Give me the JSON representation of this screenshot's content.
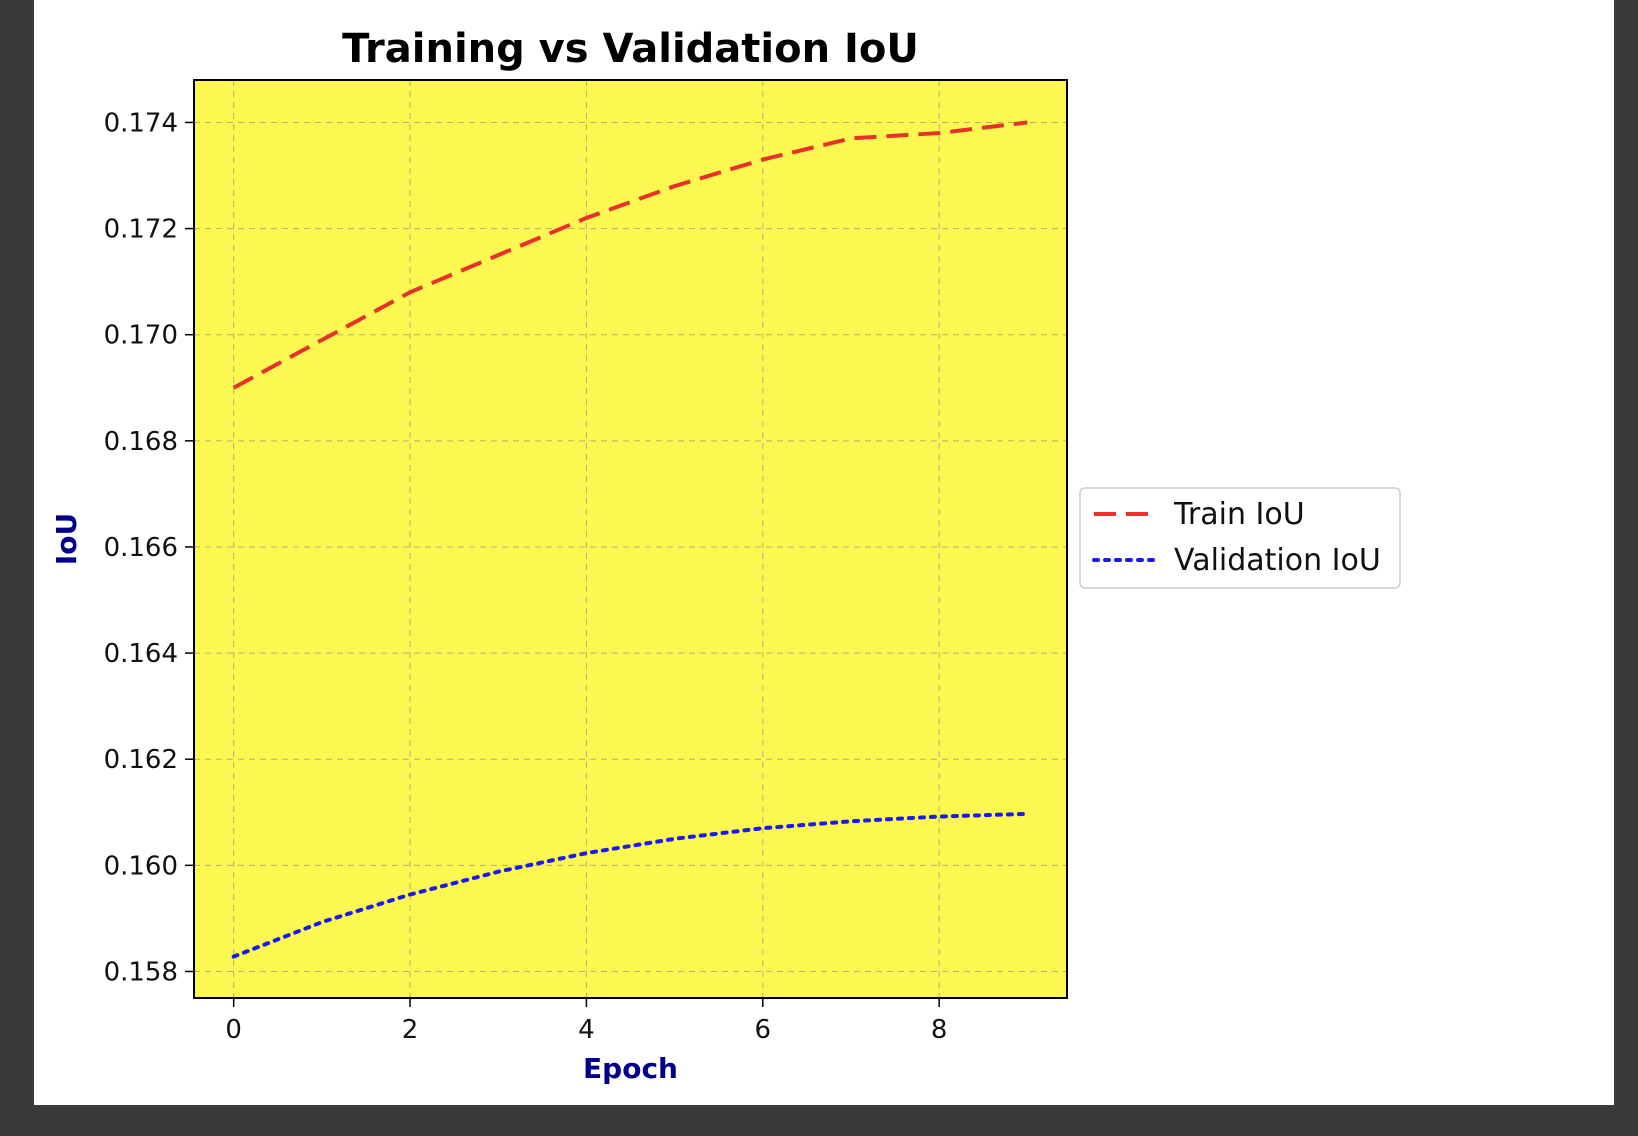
{
  "chart_data": {
    "type": "line",
    "title": "Training vs Validation IoU",
    "xlabel": "Epoch",
    "ylabel": "IoU",
    "x": [
      0,
      1,
      2,
      3,
      4,
      5,
      6,
      7,
      8,
      9
    ],
    "xlim": [
      -0.45,
      9.45
    ],
    "ylim": [
      0.1575,
      0.1748
    ],
    "x_ticks": [
      0,
      2,
      4,
      6,
      8
    ],
    "y_ticks": [
      0.158,
      0.16,
      0.162,
      0.164,
      0.166,
      0.168,
      0.17,
      0.172,
      0.174
    ],
    "y_tick_labels": [
      "0.158",
      "0.160",
      "0.162",
      "0.164",
      "0.166",
      "0.168",
      "0.170",
      "0.172",
      "0.174"
    ],
    "x_tick_labels": [
      "0",
      "2",
      "4",
      "6",
      "8"
    ],
    "grid": true,
    "legend_position": "center-right-outside",
    "plot_background": "#fdf751",
    "series": [
      {
        "name": "Train IoU",
        "color": "#e8312a",
        "style": "dashed",
        "values": [
          0.169,
          0.1699,
          0.1708,
          0.1715,
          0.1722,
          0.1728,
          0.1733,
          0.1737,
          0.1738,
          0.174
        ]
      },
      {
        "name": "Validation IoU",
        "color": "#1a1af0",
        "style": "dotted",
        "values": [
          0.15828,
          0.15893,
          0.15945,
          0.15988,
          0.16023,
          0.1605,
          0.1607,
          0.16083,
          0.16092,
          0.16097
        ]
      }
    ]
  }
}
